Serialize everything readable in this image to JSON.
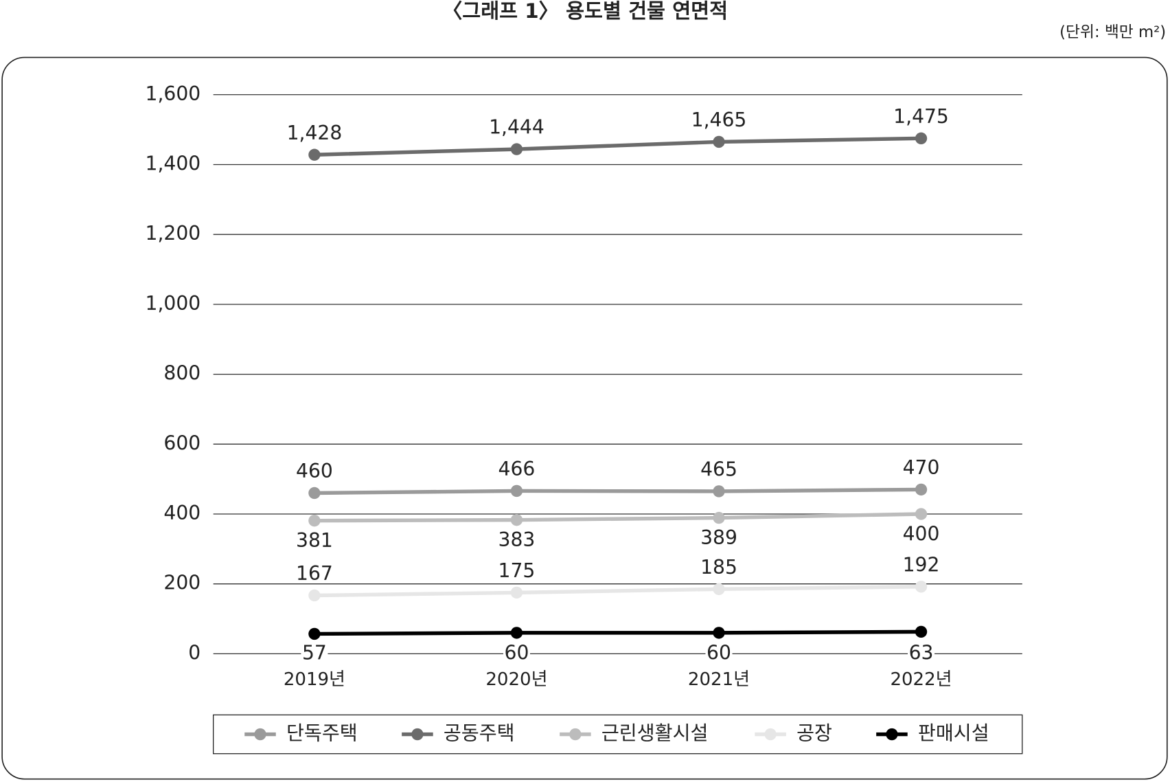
{
  "chart_data": {
    "type": "line",
    "title": "〈그래프 1〉 용도별 건물 연면적",
    "subtitle": "(단위: 백만 m²)",
    "categories": [
      "2019년",
      "2020년",
      "2021년",
      "2022년"
    ],
    "series": [
      {
        "name": "단독주택",
        "color": "#9a9a9a",
        "values": [
          460,
          466,
          465,
          470
        ]
      },
      {
        "name": "공동주택",
        "color": "#6b6b6b",
        "values": [
          1428,
          1444,
          1465,
          1475
        ],
        "value_labels": [
          "1,428",
          "1,444",
          "1,465",
          "1,475"
        ]
      },
      {
        "name": "근린생활시설",
        "color": "#bcbcbc",
        "values": [
          381,
          383,
          389,
          400
        ]
      },
      {
        "name": "공장",
        "color": "#e6e6e6",
        "values": [
          167,
          175,
          185,
          192
        ]
      },
      {
        "name": "판매시설",
        "color": "#000000",
        "values": [
          57,
          60,
          60,
          63
        ]
      }
    ],
    "ylim": [
      0,
      1600
    ],
    "yticks": [
      0,
      200,
      400,
      600,
      800,
      {
        "value": 1000,
        "label": "1,000"
      },
      {
        "value": 1200,
        "label": "1,200"
      },
      {
        "value": 1400,
        "label": "1,400"
      },
      {
        "value": 1600,
        "label": "1,600"
      }
    ],
    "grid": true,
    "legend": "bottom"
  }
}
